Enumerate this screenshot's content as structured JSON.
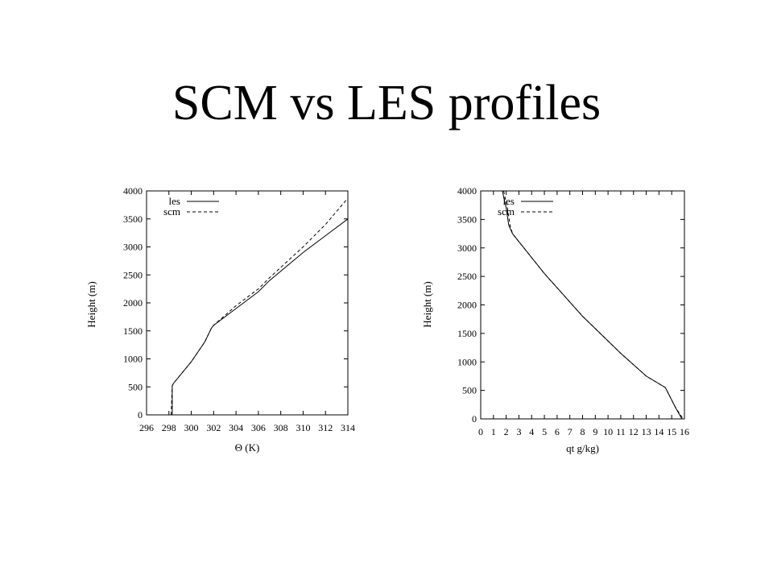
{
  "slide": {
    "title": "SCM vs LES profiles"
  },
  "colors": {
    "background": "#ffffff",
    "ink": "#000000"
  },
  "chart_data": [
    {
      "type": "line",
      "xlabel": "Θ (K)",
      "ylabel": "Height (m)",
      "xlim": [
        296,
        314
      ],
      "ylim": [
        0,
        4000
      ],
      "xticks": [
        296,
        298,
        300,
        302,
        304,
        306,
        308,
        310,
        312,
        314
      ],
      "yticks": [
        0,
        500,
        1000,
        1500,
        2000,
        2500,
        3000,
        3500,
        4000
      ],
      "grid": false,
      "legend_position": "top-left",
      "series": [
        {
          "name": "les",
          "style": "solid",
          "points": [
            [
              298.3,
              0
            ],
            [
              298.3,
              520
            ],
            [
              298.4,
              560
            ],
            [
              300,
              950
            ],
            [
              301.2,
              1300
            ],
            [
              301.8,
              1550
            ],
            [
              302,
              1600
            ],
            [
              304,
              1900
            ],
            [
              306,
              2200
            ],
            [
              307,
              2400
            ],
            [
              310,
              2900
            ],
            [
              312,
              3200
            ],
            [
              314,
              3500
            ]
          ]
        },
        {
          "name": "scm",
          "style": "dashed",
          "points": [
            [
              298.2,
              0
            ],
            [
              298.3,
              520
            ],
            [
              298.4,
              560
            ],
            [
              300,
              950
            ],
            [
              301.2,
              1300
            ],
            [
              301.8,
              1550
            ],
            [
              302,
              1600
            ],
            [
              304,
              1950
            ],
            [
              306,
              2250
            ],
            [
              307,
              2450
            ],
            [
              310,
              3000
            ],
            [
              312,
              3400
            ],
            [
              314,
              3870
            ]
          ]
        }
      ]
    },
    {
      "type": "line",
      "xlabel": "qt g/kg)",
      "ylabel": "Height (m)",
      "xlim": [
        0,
        16
      ],
      "ylim": [
        0,
        4000
      ],
      "xticks": [
        0,
        1,
        2,
        3,
        4,
        5,
        6,
        7,
        8,
        9,
        10,
        11,
        12,
        13,
        14,
        15,
        16
      ],
      "yticks": [
        0,
        500,
        1000,
        1500,
        2000,
        2500,
        3000,
        3500,
        4000
      ],
      "grid": false,
      "legend_position": "top-left",
      "series": [
        {
          "name": "les",
          "style": "solid",
          "points": [
            [
              1.7,
              4000
            ],
            [
              2.0,
              3700
            ],
            [
              2.2,
              3400
            ],
            [
              2.5,
              3250
            ],
            [
              5,
              2550
            ],
            [
              8,
              1800
            ],
            [
              11,
              1150
            ],
            [
              13,
              750
            ],
            [
              14.5,
              550
            ],
            [
              15.3,
              200
            ],
            [
              15.8,
              0
            ]
          ]
        },
        {
          "name": "scm",
          "style": "dashed",
          "points": [
            [
              1.8,
              4000
            ],
            [
              2.1,
              3700
            ],
            [
              2.3,
              3400
            ],
            [
              2.5,
              3250
            ],
            [
              5,
              2550
            ],
            [
              8,
              1800
            ],
            [
              11,
              1150
            ],
            [
              13,
              750
            ],
            [
              14.5,
              550
            ],
            [
              15.3,
              200
            ],
            [
              15.9,
              0
            ]
          ]
        }
      ]
    }
  ]
}
